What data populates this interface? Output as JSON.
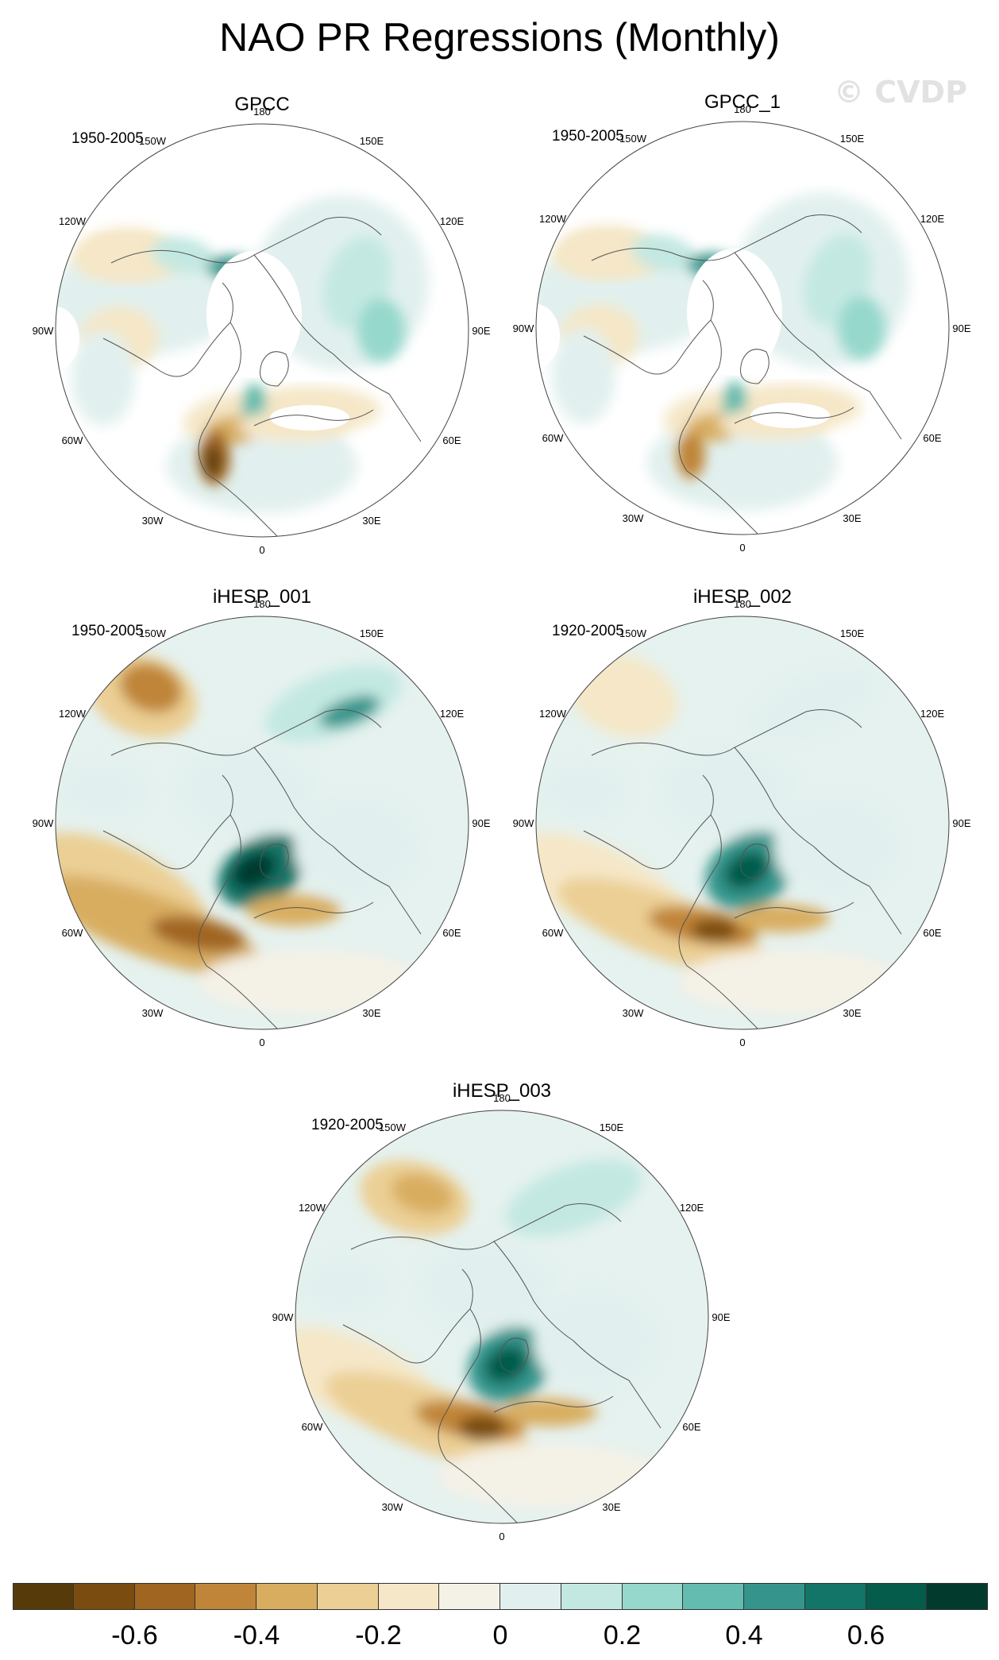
{
  "title": "NAO PR Regressions (Monthly)",
  "watermark": "© CVDP",
  "panels": [
    {
      "title": "GPCC",
      "period": "1950-2005"
    },
    {
      "title": "GPCC_1",
      "period": "1950-2005"
    },
    {
      "title": "iHESP_001",
      "period": "1950-2005"
    },
    {
      "title": "iHESP_002",
      "period": "1920-2005"
    },
    {
      "title": "iHESP_003",
      "period": "1920-2005"
    }
  ],
  "longitude_labels": [
    "180",
    "150E",
    "120E",
    "90E",
    "60E",
    "30E",
    "0",
    "30W",
    "60W",
    "90W",
    "120W",
    "150W"
  ],
  "colorbar": {
    "colors": [
      "#573a0a",
      "#7a4c10",
      "#a06520",
      "#c08539",
      "#d8ad60",
      "#ebcf94",
      "#f5e7c7",
      "#f4f1e6",
      "#e1f0ee",
      "#c3e8e2",
      "#96d8cc",
      "#64bbaf",
      "#35958c",
      "#127567",
      "#065c4b",
      "#023b2e"
    ],
    "tick_labels": [
      "-0.6",
      "-0.4",
      "-0.2",
      "0",
      "0.2",
      "0.4",
      "0.6"
    ],
    "tick_values": [
      -0.6,
      -0.4,
      -0.2,
      0,
      0.2,
      0.4,
      0.6
    ],
    "levels": [
      -0.7,
      -0.6,
      -0.5,
      -0.4,
      -0.3,
      -0.2,
      -0.1,
      0,
      0.1,
      0.2,
      0.3,
      0.4,
      0.5,
      0.6,
      0.7
    ]
  }
}
